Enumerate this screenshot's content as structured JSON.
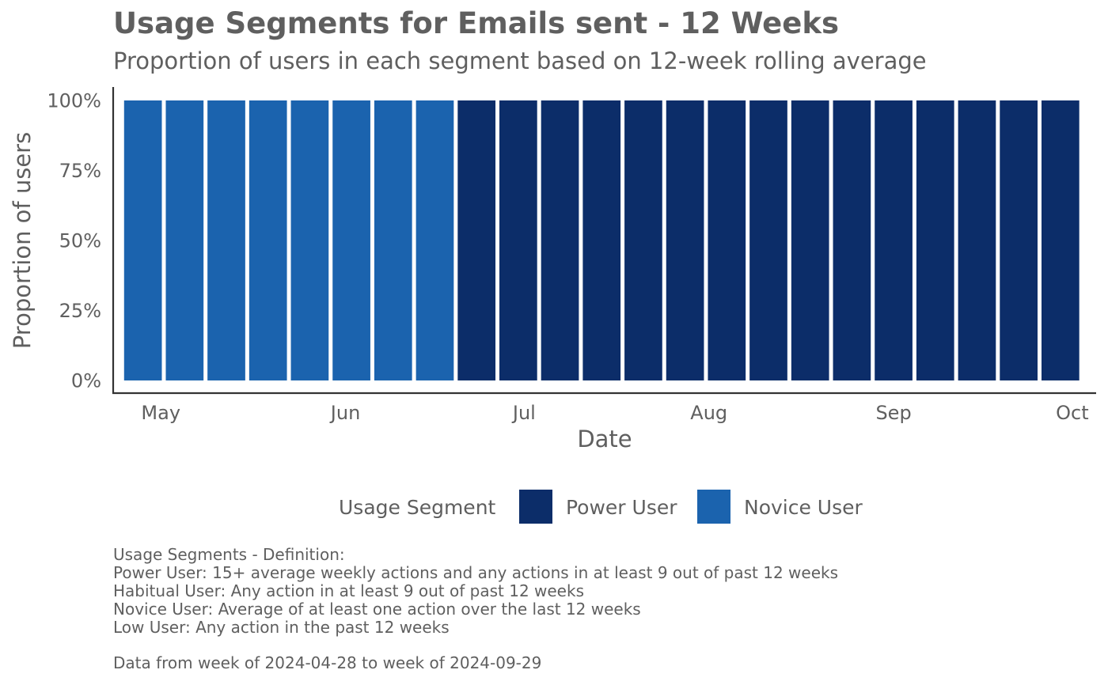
{
  "chart_data": {
    "type": "bar",
    "stacked": true,
    "title": "Usage Segments for Emails sent - 12 Weeks",
    "subtitle": "Proportion of users in each segment based on 12-week rolling average",
    "xlabel": "Date",
    "ylabel": "Proportion of users",
    "ylim": [
      0,
      1
    ],
    "y_ticks": [
      "0%",
      "25%",
      "50%",
      "75%",
      "100%"
    ],
    "x_ticks": [
      "May",
      "Jun",
      "Jul",
      "Aug",
      "Sep",
      "Oct"
    ],
    "x_tick_dates": [
      "2024-05-01",
      "2024-06-01",
      "2024-07-01",
      "2024-08-01",
      "2024-09-01",
      "2024-10-01"
    ],
    "x_range": [
      "2024-04-23",
      "2024-10-05"
    ],
    "grid": false,
    "legend": {
      "title": "Usage Segment",
      "position": "bottom",
      "entries": [
        {
          "name": "Power User",
          "color": "#0c2d69"
        },
        {
          "name": "Novice User",
          "color": "#1b63ae"
        }
      ]
    },
    "weeks": [
      "2024-04-28",
      "2024-05-05",
      "2024-05-12",
      "2024-05-19",
      "2024-05-26",
      "2024-06-02",
      "2024-06-09",
      "2024-06-16",
      "2024-06-23",
      "2024-06-30",
      "2024-07-07",
      "2024-07-14",
      "2024-07-21",
      "2024-07-28",
      "2024-08-04",
      "2024-08-11",
      "2024-08-18",
      "2024-08-25",
      "2024-09-01",
      "2024-09-08",
      "2024-09-15",
      "2024-09-22",
      "2024-09-29"
    ],
    "series": [
      {
        "name": "Novice User",
        "color": "#1b63ae",
        "values": [
          1,
          1,
          1,
          1,
          1,
          1,
          1,
          1,
          0,
          0,
          0,
          0,
          0,
          0,
          0,
          0,
          0,
          0,
          0,
          0,
          0,
          0,
          0
        ]
      },
      {
        "name": "Power User",
        "color": "#0c2d69",
        "values": [
          0,
          0,
          0,
          0,
          0,
          0,
          0,
          0,
          1,
          1,
          1,
          1,
          1,
          1,
          1,
          1,
          1,
          1,
          1,
          1,
          1,
          1,
          1
        ]
      }
    ]
  },
  "caption": {
    "lines": [
      "Usage Segments - Definition:",
      "Power User: 15+ average weekly actions and any actions in at least 9 out of past 12 weeks",
      "Habitual User: Any action in at least 9 out of past 12 weeks",
      "Novice User: Average of at least one action over the last 12 weeks",
      "Low User: Any action in the past 12 weeks",
      "",
      "Data from week of 2024-04-28 to week of 2024-09-29"
    ]
  },
  "colors": {
    "text": "#5f5f5f",
    "axis": "#333333"
  }
}
